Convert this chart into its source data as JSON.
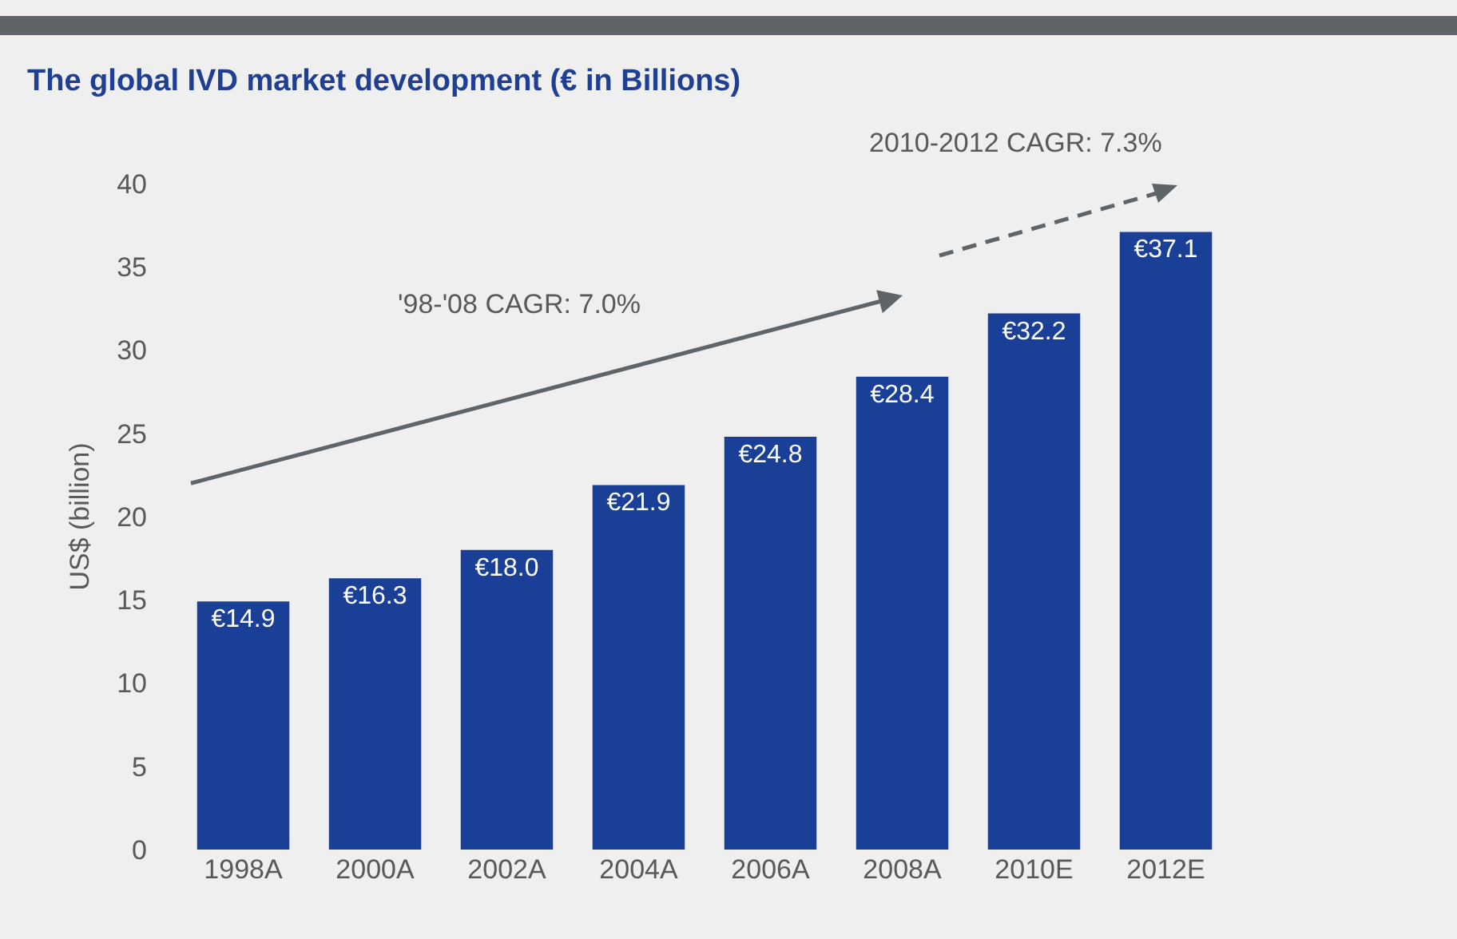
{
  "chart_data": {
    "type": "bar",
    "title": "The global IVD market development (€ in Billions)",
    "ylabel": "US$ (billion)",
    "categories": [
      "1998A",
      "2000A",
      "2002A",
      "2004A",
      "2006A",
      "2008A",
      "2010E",
      "2012E"
    ],
    "values": [
      14.9,
      16.3,
      18.0,
      21.9,
      24.8,
      28.4,
      32.2,
      37.1
    ],
    "value_labels": [
      "€14.9",
      "€16.3",
      "€18.0",
      "€21.9",
      "€24.8",
      "€28.4",
      "€32.2",
      "€37.1"
    ],
    "color": "#1a3f96",
    "ylim": [
      0,
      40
    ],
    "yticks": [
      0,
      5,
      10,
      15,
      20,
      25,
      30,
      35,
      40
    ],
    "grid": false,
    "annotations": [
      "'98-'08 CAGR: 7.0%",
      "2010-2012 CAGR: 7.3%"
    ]
  }
}
